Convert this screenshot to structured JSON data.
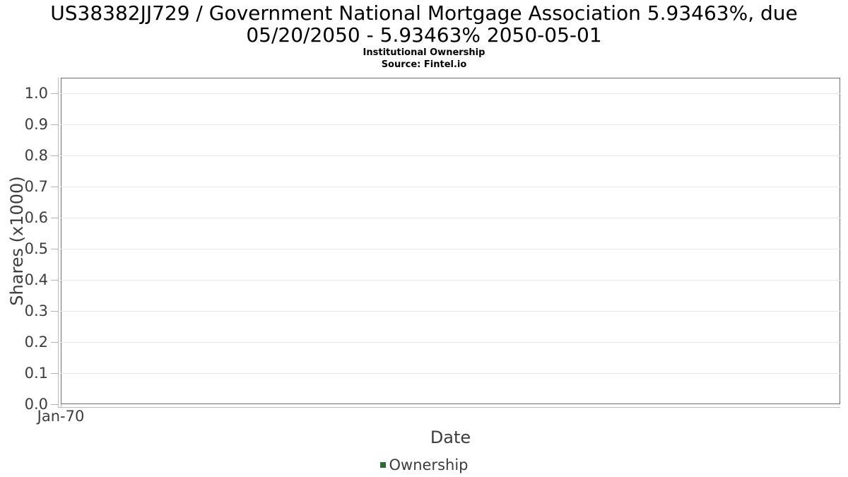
{
  "header": {
    "title_line1": "US38382JJ729 / Government National Mortgage Association 5.93463%, due",
    "title_line2": "05/20/2050 - 5.93463% 2050-05-01",
    "subtitle": "Institutional Ownership",
    "source": "Source: Fintel.io"
  },
  "axes": {
    "y_label": "Shares (x1000)",
    "x_label": "Date",
    "x_ticks": [
      "Jan-70"
    ],
    "y_ticks": [
      {
        "value": 0.0,
        "label": "0.0"
      },
      {
        "value": 0.1,
        "label": "0.1"
      },
      {
        "value": 0.2,
        "label": "0.2"
      },
      {
        "value": 0.3,
        "label": "0.3"
      },
      {
        "value": 0.4,
        "label": "0.4"
      },
      {
        "value": 0.5,
        "label": "0.5"
      },
      {
        "value": 0.6,
        "label": "0.6"
      },
      {
        "value": 0.7,
        "label": "0.7"
      },
      {
        "value": 0.8,
        "label": "0.8"
      },
      {
        "value": 0.9,
        "label": "0.9"
      },
      {
        "value": 1.0,
        "label": "1.0"
      }
    ]
  },
  "legend": {
    "items": [
      {
        "label": "Ownership",
        "color": "#2d6a34"
      }
    ]
  },
  "chart_data": {
    "type": "line",
    "title": "US38382JJ729 / Government National Mortgage Association 5.93463%, due 05/20/2050 - 5.93463% 2050-05-01",
    "subtitle": "Institutional Ownership",
    "source": "Source: Fintel.io",
    "xlabel": "Date",
    "ylabel": "Shares (x1000)",
    "x": [],
    "x_tick_labels": [
      "Jan-70"
    ],
    "series": [
      {
        "name": "Ownership",
        "color": "#2d6a34",
        "values": []
      }
    ],
    "ylim": [
      0,
      1.05
    ],
    "y_ticks": [
      0.0,
      0.1,
      0.2,
      0.3,
      0.4,
      0.5,
      0.6,
      0.7,
      0.8,
      0.9,
      1.0
    ],
    "grid": "horizontal-only",
    "legend_position": "bottom-center"
  }
}
